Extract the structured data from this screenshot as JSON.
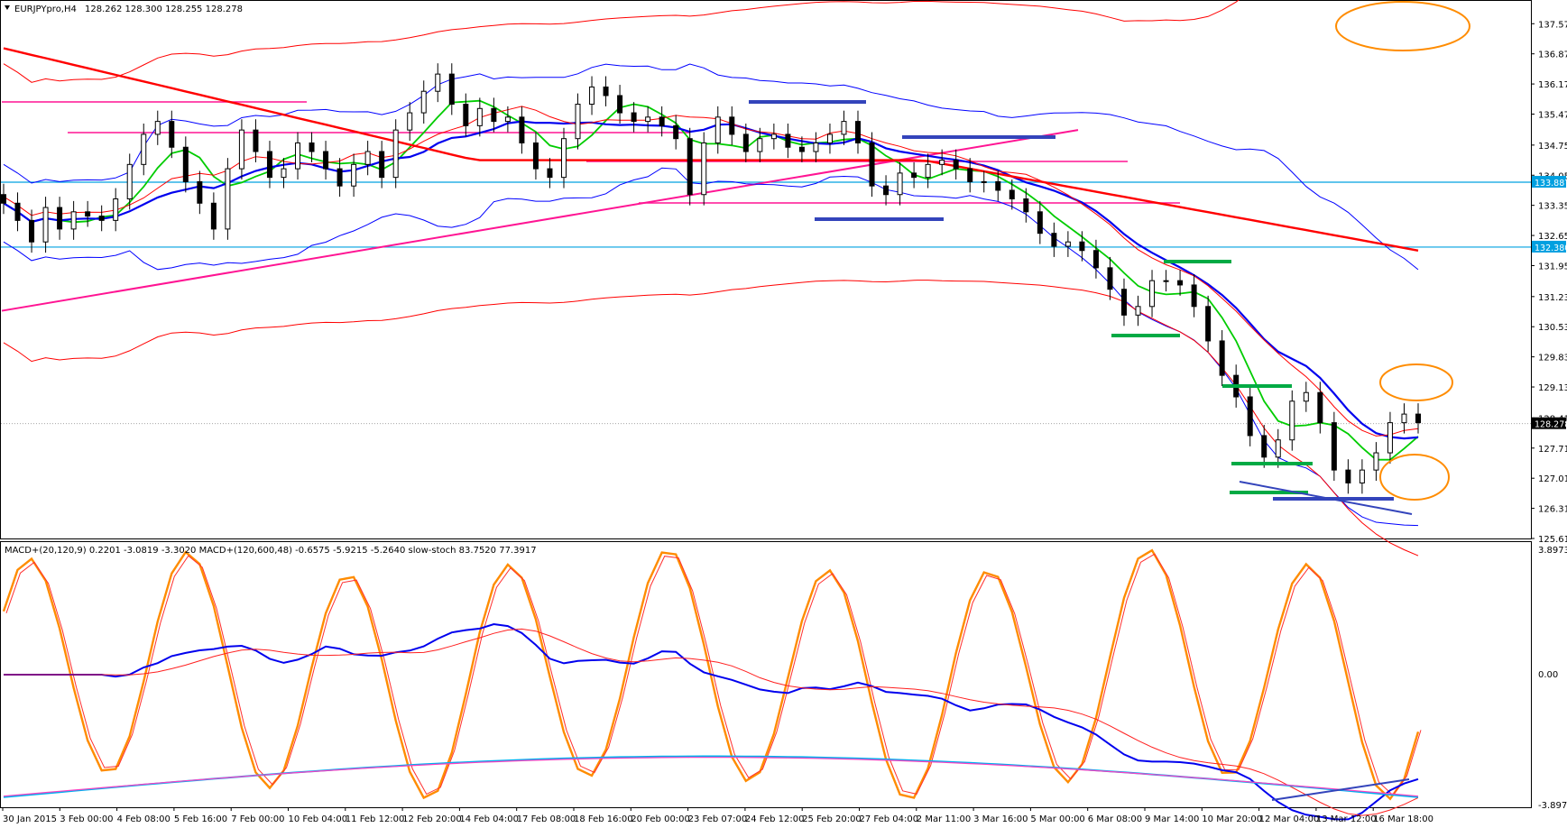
{
  "header": {
    "symbol_label": "EURJPYpro,H4",
    "ohlc_label": "128.262 128.300 128.255 128.278"
  },
  "indicator_header": "MACD+(20,120,9) 0.2201 -3.0819 -3.3020  MACD+(120,600,48) -0.6575 -5.9215 -5.2640  slow-stoch 83.7520 77.3917",
  "colors": {
    "candle_bull": "#000000",
    "candle_bear": "#000000",
    "boll_outer": "#ff0000",
    "boll_inner": "#0000ff",
    "ma_fast": "#00cc00",
    "ma_mid": "#0000ee",
    "ma_slow": "#ff0000",
    "level_line": "#00a0e0",
    "support_green": "#00aa44",
    "support_blue": "#3344bb",
    "pink": "#ff1493",
    "stoch_orange": "#ff8c00",
    "annotation_orange": "#ff8c00"
  },
  "chart_data": [
    {
      "type": "line",
      "name": "price",
      "y_ticks": [
        "137.570",
        "136.870",
        "136.170",
        "135.470",
        "134.750",
        "134.050",
        "133.350",
        "132.650",
        "131.950",
        "131.230",
        "130.530",
        "129.830",
        "129.130",
        "128.410",
        "127.710",
        "127.010",
        "126.310",
        "125.610"
      ],
      "x_ticks": [
        "30 Jan 2015",
        "3 Feb 00:00",
        "4 Feb 08:00",
        "5 Feb 16:00",
        "7 Feb 00:00",
        "10 Feb 04:00",
        "11 Feb 12:00",
        "12 Feb 20:00",
        "14 Feb 04:00",
        "17 Feb 08:00",
        "18 Feb 16:00",
        "20 Feb 00:00",
        "23 Feb 07:00",
        "24 Feb 12:00",
        "25 Feb 20:00",
        "27 Feb 04:00",
        "2 Mar 11:00",
        "3 Mar 16:00",
        "5 Mar 00:00",
        "6 Mar 08:00",
        "9 Mar 14:00",
        "10 Mar 20:00",
        "12 Mar 04:00",
        "13 Mar 12:00",
        "16 Mar 18:00"
      ],
      "ylim": [
        125.61,
        138.1
      ],
      "price_tags": [
        "133.887",
        "132.380",
        "128.278"
      ],
      "horizontal_levels": [
        133.887,
        132.38
      ],
      "close_series": [
        133.4,
        133.0,
        132.5,
        133.3,
        132.8,
        133.2,
        133.1,
        133.0,
        133.5,
        134.3,
        135.0,
        135.3,
        134.7,
        133.9,
        133.4,
        132.8,
        134.2,
        135.1,
        134.6,
        134.0,
        134.2,
        134.8,
        134.6,
        134.2,
        133.8,
        134.3,
        134.6,
        134.0,
        135.1,
        135.5,
        136.0,
        136.4,
        135.7,
        135.2,
        135.6,
        135.3,
        135.4,
        134.8,
        134.2,
        134.0,
        134.9,
        135.7,
        136.1,
        135.9,
        135.5,
        135.3,
        135.4,
        135.2,
        134.9,
        133.6,
        134.8,
        135.4,
        135.0,
        134.6,
        134.9,
        135.0,
        134.7,
        134.6,
        134.8,
        135.0,
        135.3,
        134.8,
        133.8,
        133.6,
        134.1,
        134.0,
        134.3,
        134.4,
        134.2,
        133.9,
        133.9,
        133.7,
        133.5,
        133.2,
        132.7,
        132.4,
        132.5,
        132.3,
        131.9,
        131.4,
        130.8,
        131.0,
        131.6,
        131.6,
        131.5,
        131.0,
        130.2,
        129.4,
        128.9,
        128.0,
        127.5,
        127.9,
        128.8,
        129.0,
        128.3,
        127.2,
        126.9,
        127.2,
        127.6,
        128.3,
        128.5,
        128.3
      ],
      "series": [
        {
          "name": "candles"
        },
        {
          "name": "ma_fast"
        },
        {
          "name": "ma_mid"
        },
        {
          "name": "ma_slow"
        },
        {
          "name": "bb_upper"
        },
        {
          "name": "bb_lower"
        },
        {
          "name": "bb_inner_upper"
        },
        {
          "name": "bb_inner_lower"
        }
      ],
      "grid": false
    },
    {
      "type": "line",
      "name": "oscillators",
      "y_ticks": [
        "3.8973",
        "0.00",
        "-3.8973"
      ],
      "ylim": [
        -3.8973,
        3.8973
      ],
      "series": [
        {
          "name": "slow_stoch"
        },
        {
          "name": "macd_fast"
        },
        {
          "name": "macd_fast_signal"
        },
        {
          "name": "macd_slow"
        },
        {
          "name": "macd_slow_signal"
        }
      ]
    }
  ]
}
